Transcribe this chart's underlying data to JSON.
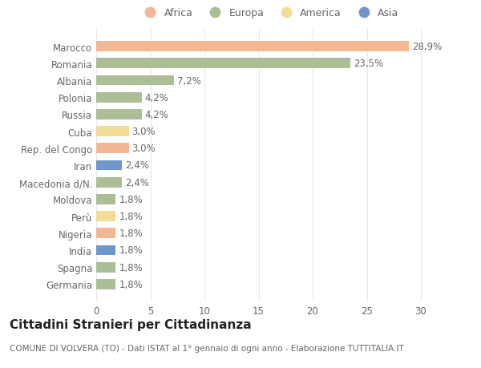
{
  "countries": [
    "Germania",
    "Spagna",
    "India",
    "Nigeria",
    "Perù",
    "Moldova",
    "Macedonia d/N.",
    "Iran",
    "Rep. del Congo",
    "Cuba",
    "Russia",
    "Polonia",
    "Albania",
    "Romania",
    "Marocco"
  ],
  "values": [
    1.8,
    1.8,
    1.8,
    1.8,
    1.8,
    1.8,
    2.4,
    2.4,
    3.0,
    3.0,
    4.2,
    4.2,
    7.2,
    23.5,
    28.9
  ],
  "labels": [
    "1,8%",
    "1,8%",
    "1,8%",
    "1,8%",
    "1,8%",
    "1,8%",
    "2,4%",
    "2,4%",
    "3,0%",
    "3,0%",
    "4,2%",
    "4,2%",
    "7,2%",
    "23,5%",
    "28,9%"
  ],
  "continents": [
    "Europa",
    "Europa",
    "Asia",
    "Africa",
    "America",
    "Europa",
    "Europa",
    "Asia",
    "Africa",
    "America",
    "Europa",
    "Europa",
    "Europa",
    "Europa",
    "Africa"
  ],
  "colors": {
    "Africa": "#F2B896",
    "Europa": "#ABBE96",
    "America": "#F2DC96",
    "Asia": "#7096CC"
  },
  "legend_order": [
    "Africa",
    "Europa",
    "America",
    "Asia"
  ],
  "title": "Cittadini Stranieri per Cittadinanza",
  "subtitle": "COMUNE DI VOLVERA (TO) - Dati ISTAT al 1° gennaio di ogni anno - Elaborazione TUTTITALIA.IT",
  "xlim": [
    0,
    32
  ],
  "xticks": [
    0,
    5,
    10,
    15,
    20,
    25,
    30
  ],
  "background_color": "#ffffff",
  "grid_color": "#e8e8e8",
  "bar_height": 0.6,
  "label_fontsize": 8.5,
  "tick_fontsize": 8.5,
  "title_fontsize": 11,
  "subtitle_fontsize": 7.5
}
